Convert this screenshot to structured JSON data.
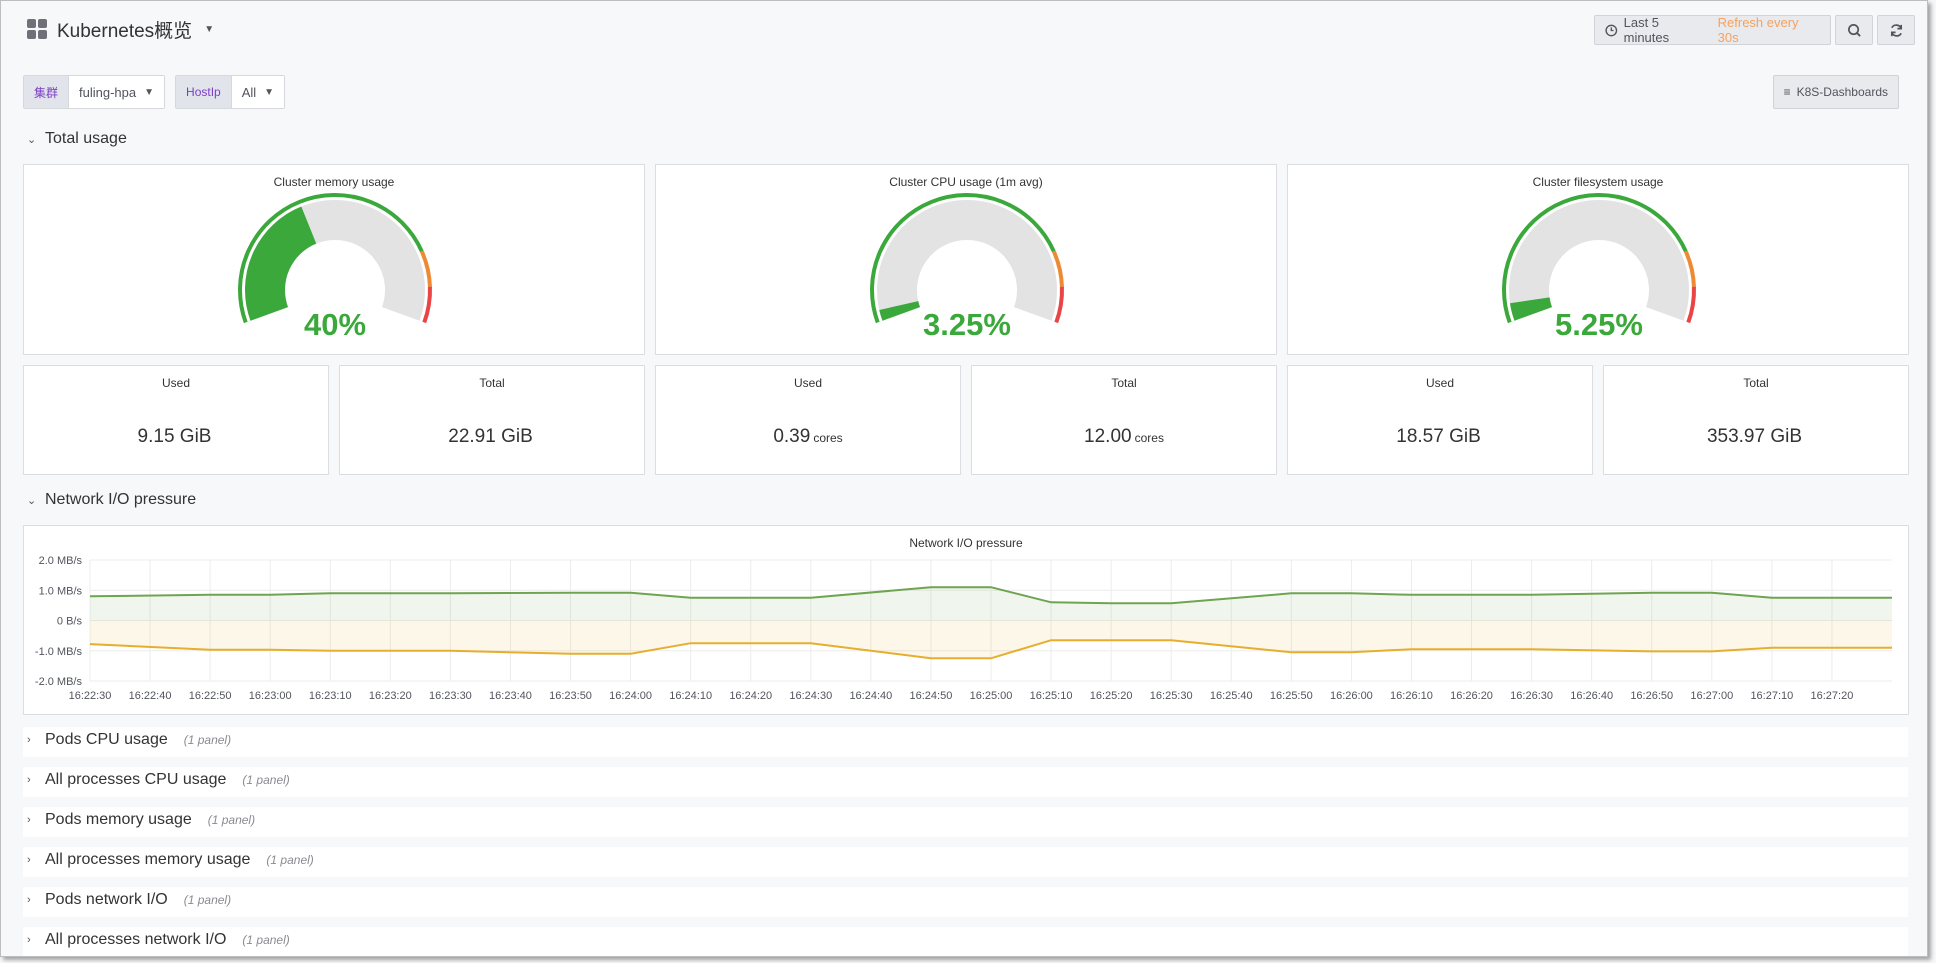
{
  "header": {
    "title": "Kubernetes概览",
    "time_range": "Last 5 minutes",
    "refresh": "Refresh every 30s"
  },
  "variables": [
    {
      "label": "集群",
      "value": "fuling-hpa"
    },
    {
      "label": "HostIp",
      "value": "All"
    }
  ],
  "links": {
    "label": "K8S-Dashboards"
  },
  "rows": {
    "total_usage": "Total usage",
    "network": "Network I/O pressure"
  },
  "gauges": [
    {
      "title": "Cluster memory usage",
      "value": 40,
      "display": "40%"
    },
    {
      "title": "Cluster CPU usage (1m avg)",
      "value": 3.25,
      "display": "3.25%"
    },
    {
      "title": "Cluster filesystem usage",
      "value": 5.25,
      "display": "5.25%"
    }
  ],
  "stats": [
    {
      "title": "Used",
      "value": "9.15 GiB",
      "unit": ""
    },
    {
      "title": "Total",
      "value": "22.91 GiB",
      "unit": ""
    },
    {
      "title": "Used",
      "value": "0.39",
      "unit": "cores"
    },
    {
      "title": "Total",
      "value": "12.00",
      "unit": "cores"
    },
    {
      "title": "Used",
      "value": "18.57 GiB",
      "unit": ""
    },
    {
      "title": "Total",
      "value": "353.97 GiB",
      "unit": ""
    }
  ],
  "colors": {
    "ok": "#3ba83b",
    "warn": "#ef8a34",
    "crit": "#e84646",
    "rx": "#6fa451",
    "tx": "#e6ae2c"
  },
  "collapsed_rows": [
    {
      "label": "Pods CPU usage",
      "count": "(1 panel)"
    },
    {
      "label": "All processes CPU usage",
      "count": "(1 panel)"
    },
    {
      "label": "Pods memory usage",
      "count": "(1 panel)"
    },
    {
      "label": "All processes memory usage",
      "count": "(1 panel)"
    },
    {
      "label": "Pods network I/O",
      "count": "(1 panel)"
    },
    {
      "label": "All processes network I/O",
      "count": "(1 panel)"
    }
  ],
  "chart_data": {
    "type": "area",
    "title": "Network I/O pressure",
    "y_ticks": [
      "2.0 MB/s",
      "1.0 MB/s",
      "0 B/s",
      "-1.0 MB/s",
      "-2.0 MB/s"
    ],
    "ylim": [
      -2.0,
      2.0
    ],
    "x_ticks": [
      "16:22:30",
      "16:22:40",
      "16:22:50",
      "16:23:00",
      "16:23:10",
      "16:23:20",
      "16:23:30",
      "16:23:40",
      "16:23:50",
      "16:24:00",
      "16:24:10",
      "16:24:20",
      "16:24:30",
      "16:24:40",
      "16:24:50",
      "16:25:00",
      "16:25:10",
      "16:25:20",
      "16:25:30",
      "16:25:40",
      "16:25:50",
      "16:26:00",
      "16:26:10",
      "16:26:20",
      "16:26:30",
      "16:26:40",
      "16:26:50",
      "16:27:00",
      "16:27:10",
      "16:27:20"
    ],
    "x": [
      "16:22:30",
      "16:22:50",
      "16:23:00",
      "16:23:10",
      "16:23:30",
      "16:23:50",
      "16:24:00",
      "16:24:10",
      "16:24:30",
      "16:24:50",
      "16:25:00",
      "16:25:10",
      "16:25:20",
      "16:25:30",
      "16:25:50",
      "16:26:00",
      "16:26:10",
      "16:26:30",
      "16:26:50",
      "16:27:00",
      "16:27:10",
      "16:27:30"
    ],
    "series": [
      {
        "values": [
          0.8,
          0.85,
          0.85,
          0.9,
          0.9,
          0.92,
          0.92,
          0.75,
          0.75,
          1.1,
          1.1,
          0.6,
          0.57,
          0.57,
          0.9,
          0.9,
          0.85,
          0.85,
          0.92,
          0.92,
          0.75,
          0.75
        ]
      },
      {
        "values": [
          -0.78,
          -0.97,
          -0.97,
          -1.0,
          -1.0,
          -1.1,
          -1.1,
          -0.75,
          -0.75,
          -1.25,
          -1.25,
          -0.65,
          -0.65,
          -0.65,
          -1.05,
          -1.05,
          -0.95,
          -0.95,
          -1.02,
          -1.02,
          -0.9,
          -0.9
        ]
      }
    ]
  }
}
